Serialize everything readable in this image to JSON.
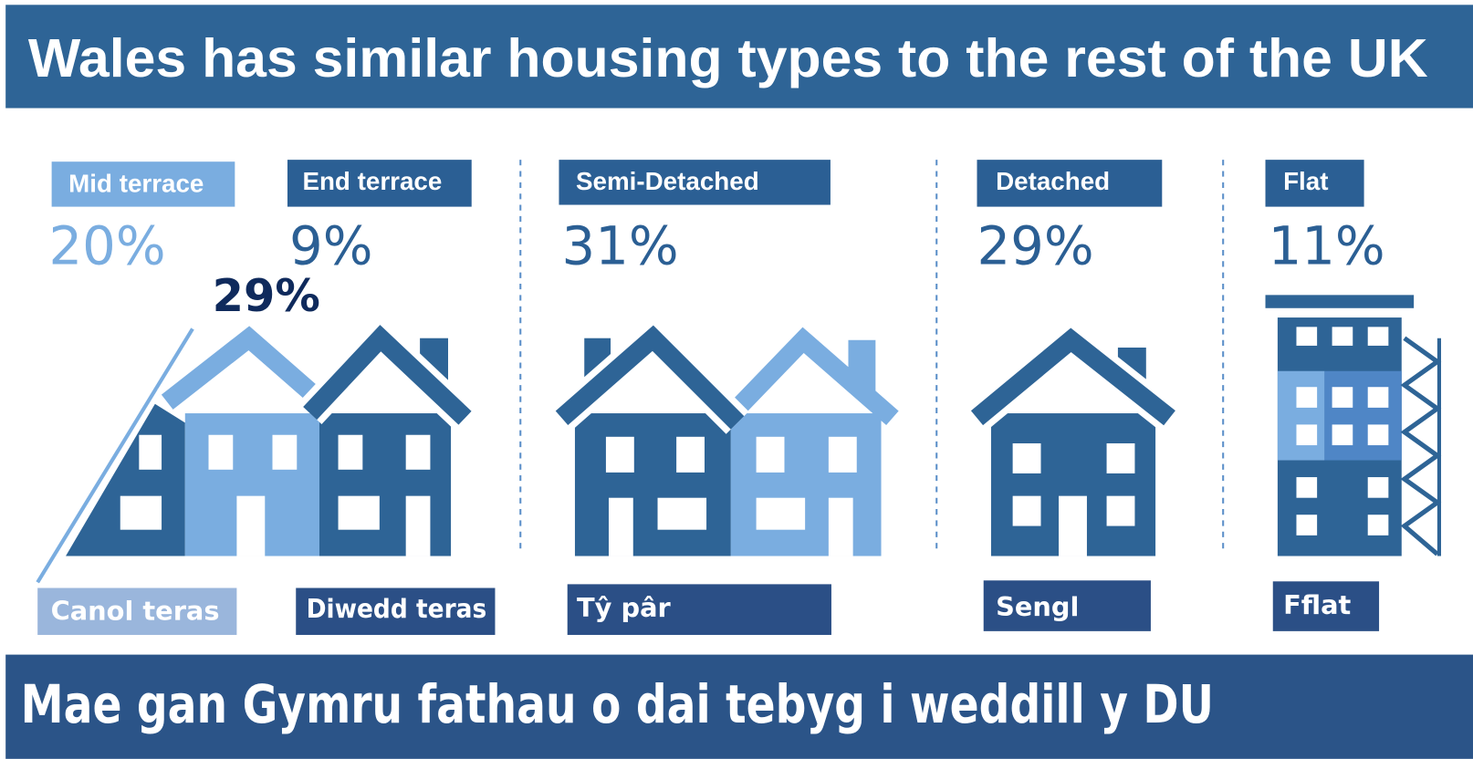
{
  "header": {
    "title": "Wales has similar housing types to the rest of the UK"
  },
  "items": [
    {
      "label": "Mid terrace",
      "percent": "20%",
      "welsh": "Canol teras"
    },
    {
      "label": "End terrace",
      "percent": "9%",
      "welsh": "Diwedd teras"
    },
    {
      "label": "Semi-Detached",
      "percent": "31%",
      "welsh": "Tŷ pâr"
    },
    {
      "label": "Detached",
      "percent": "29%",
      "welsh": "Sengl"
    },
    {
      "label": "Flat",
      "percent": "11%",
      "welsh": "Fflat"
    }
  ],
  "annotation": "29%",
  "footer": {
    "title": "Mae gan Gymru fathau o dai tebyg i weddill y DU"
  }
}
